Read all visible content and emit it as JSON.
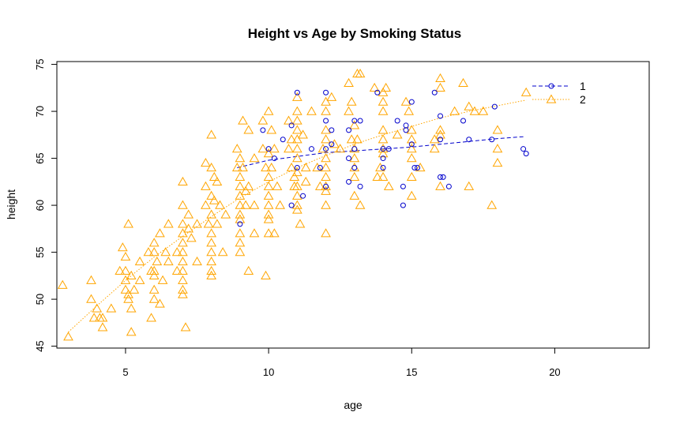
{
  "chart_data": {
    "type": "scatter",
    "title": "Height vs Age by Smoking Status",
    "xlabel": "age",
    "ylabel": "height",
    "xlim": [
      2.6,
      23.3
    ],
    "ylim": [
      44.8,
      75.3
    ],
    "xticks": [
      5,
      10,
      15,
      20
    ],
    "yticks": [
      45,
      50,
      55,
      60,
      65,
      70,
      75
    ],
    "legend_position": "top-right",
    "grid": false,
    "series": [
      {
        "name": "1",
        "color": "#0000cc",
        "marker": "circle",
        "line_style": "dashed",
        "points": [
          [
            9,
            58
          ],
          [
            9.8,
            68
          ],
          [
            10,
            66
          ],
          [
            10.2,
            65
          ],
          [
            10.5,
            67
          ],
          [
            10.8,
            68.5
          ],
          [
            10.8,
            60
          ],
          [
            11,
            64
          ],
          [
            11,
            72
          ],
          [
            11.2,
            61
          ],
          [
            11.5,
            66
          ],
          [
            11.8,
            64
          ],
          [
            12,
            72
          ],
          [
            12,
            69
          ],
          [
            12,
            66
          ],
          [
            12.2,
            68
          ],
          [
            12.2,
            66.5
          ],
          [
            12,
            62
          ],
          [
            12.8,
            68
          ],
          [
            12.8,
            65
          ],
          [
            13,
            69
          ],
          [
            13,
            66
          ],
          [
            13.2,
            69
          ],
          [
            13,
            64
          ],
          [
            12.8,
            62.5
          ],
          [
            13.2,
            62
          ],
          [
            13.8,
            72
          ],
          [
            14,
            66
          ],
          [
            14,
            65
          ],
          [
            14,
            64
          ],
          [
            14.2,
            66
          ],
          [
            14.5,
            69
          ],
          [
            14.8,
            68.5
          ],
          [
            14.8,
            68
          ],
          [
            14.7,
            62
          ],
          [
            14.7,
            60
          ],
          [
            15,
            66.5
          ],
          [
            15,
            71
          ],
          [
            15.1,
            64
          ],
          [
            15.2,
            64
          ],
          [
            15.8,
            72
          ],
          [
            16,
            69.5
          ],
          [
            16,
            67
          ],
          [
            16,
            63
          ],
          [
            16.1,
            63
          ],
          [
            16.3,
            62
          ],
          [
            16.8,
            69
          ],
          [
            17,
            67
          ],
          [
            17.8,
            67
          ],
          [
            17.9,
            70.5
          ],
          [
            18.9,
            66
          ],
          [
            19,
            65.5
          ]
        ],
        "smooth_line": [
          [
            8.9,
            64
          ],
          [
            10,
            64.8
          ],
          [
            11,
            65.2
          ],
          [
            12,
            65.6
          ],
          [
            13,
            65.8
          ],
          [
            14,
            66
          ],
          [
            15,
            66.2
          ],
          [
            16,
            66.5
          ],
          [
            17,
            66.8
          ],
          [
            18,
            67.1
          ],
          [
            18.9,
            67.3
          ]
        ]
      },
      {
        "name": "2",
        "color": "#ffa500",
        "marker": "triangle",
        "line_style": "dotted",
        "points": [
          [
            2.8,
            51.5
          ],
          [
            3,
            46
          ],
          [
            3.8,
            52
          ],
          [
            3.8,
            50
          ],
          [
            3.9,
            48
          ],
          [
            4,
            49
          ],
          [
            4.1,
            48
          ],
          [
            4.2,
            48
          ],
          [
            4.2,
            47
          ],
          [
            4.5,
            49
          ],
          [
            4.8,
            53
          ],
          [
            4.9,
            55.5
          ],
          [
            5,
            54.5
          ],
          [
            5,
            53
          ],
          [
            5,
            52
          ],
          [
            5,
            51
          ],
          [
            5.1,
            50.5
          ],
          [
            5.1,
            50
          ],
          [
            5.2,
            52.5
          ],
          [
            5.1,
            58
          ],
          [
            5.2,
            46.5
          ],
          [
            5.2,
            49
          ],
          [
            5.3,
            51
          ],
          [
            5.5,
            54
          ],
          [
            5.5,
            52
          ],
          [
            5.8,
            55
          ],
          [
            5.9,
            53
          ],
          [
            6,
            56
          ],
          [
            6,
            55
          ],
          [
            6,
            53
          ],
          [
            6,
            52.5
          ],
          [
            6,
            51
          ],
          [
            6,
            50
          ],
          [
            6.1,
            54
          ],
          [
            6.2,
            57
          ],
          [
            6.2,
            49.5
          ],
          [
            6.3,
            52
          ],
          [
            6.4,
            55
          ],
          [
            6.5,
            58
          ],
          [
            6.5,
            54
          ],
          [
            5.9,
            48
          ],
          [
            6.8,
            55
          ],
          [
            6.8,
            53
          ],
          [
            7,
            62.5
          ],
          [
            7,
            60
          ],
          [
            7,
            58
          ],
          [
            7,
            57
          ],
          [
            7,
            56
          ],
          [
            7,
            55
          ],
          [
            7,
            54
          ],
          [
            7,
            53
          ],
          [
            7,
            52
          ],
          [
            7,
            51
          ],
          [
            7,
            50.5
          ],
          [
            7.1,
            47
          ],
          [
            7.2,
            59
          ],
          [
            7.2,
            57.5
          ],
          [
            7.3,
            56.5
          ],
          [
            7.5,
            58
          ],
          [
            7.5,
            54
          ],
          [
            7.8,
            64.5
          ],
          [
            7.8,
            62
          ],
          [
            7.8,
            60
          ],
          [
            7.9,
            58
          ],
          [
            8,
            67.5
          ],
          [
            8,
            64
          ],
          [
            8,
            61
          ],
          [
            8,
            59
          ],
          [
            8,
            57
          ],
          [
            8,
            56
          ],
          [
            8,
            55
          ],
          [
            8,
            54
          ],
          [
            8,
            53
          ],
          [
            8,
            52.5
          ],
          [
            8.1,
            63
          ],
          [
            8.1,
            60.5
          ],
          [
            8.2,
            62.5
          ],
          [
            8.2,
            58
          ],
          [
            8.3,
            60
          ],
          [
            8.4,
            55
          ],
          [
            8.5,
            59
          ],
          [
            8.9,
            66
          ],
          [
            8.9,
            64
          ],
          [
            9,
            65
          ],
          [
            9,
            63
          ],
          [
            9,
            62
          ],
          [
            9,
            61
          ],
          [
            9,
            60
          ],
          [
            9,
            59
          ],
          [
            9,
            58.5
          ],
          [
            9,
            57
          ],
          [
            9,
            56
          ],
          [
            9,
            55
          ],
          [
            9.1,
            69
          ],
          [
            9.1,
            64
          ],
          [
            9.2,
            61.5
          ],
          [
            9.2,
            60
          ],
          [
            9.3,
            68
          ],
          [
            9.3,
            62
          ],
          [
            9.3,
            53
          ],
          [
            9.5,
            65
          ],
          [
            9.5,
            60
          ],
          [
            9.5,
            57
          ],
          [
            9.8,
            69
          ],
          [
            9.8,
            66
          ],
          [
            9.9,
            64
          ],
          [
            9.9,
            52.5
          ],
          [
            10,
            70
          ],
          [
            10,
            65.5
          ],
          [
            10,
            63
          ],
          [
            10,
            62
          ],
          [
            10,
            61
          ],
          [
            10,
            60
          ],
          [
            10,
            59
          ],
          [
            10,
            58.5
          ],
          [
            10,
            57
          ],
          [
            10.1,
            68
          ],
          [
            10.1,
            64
          ],
          [
            10.2,
            66
          ],
          [
            10.2,
            57
          ],
          [
            10.3,
            62
          ],
          [
            10.4,
            60
          ],
          [
            10.7,
            69
          ],
          [
            10.7,
            66
          ],
          [
            10.8,
            67
          ],
          [
            10.8,
            64
          ],
          [
            10.9,
            63
          ],
          [
            10.9,
            62
          ],
          [
            11,
            71.5
          ],
          [
            11,
            70
          ],
          [
            11,
            69
          ],
          [
            11,
            68
          ],
          [
            11,
            67
          ],
          [
            11,
            66
          ],
          [
            11,
            65
          ],
          [
            11,
            63.5
          ],
          [
            11,
            62
          ],
          [
            11,
            61
          ],
          [
            11,
            60
          ],
          [
            11,
            59.5
          ],
          [
            11.1,
            58
          ],
          [
            11.2,
            67.5
          ],
          [
            11.3,
            64
          ],
          [
            11.3,
            62.5
          ],
          [
            11.5,
            70
          ],
          [
            11.7,
            64
          ],
          [
            11.8,
            62
          ],
          [
            11.9,
            66
          ],
          [
            12,
            71
          ],
          [
            12,
            70
          ],
          [
            12,
            68
          ],
          [
            12,
            67
          ],
          [
            12,
            65
          ],
          [
            12,
            64
          ],
          [
            12,
            63
          ],
          [
            12,
            62
          ],
          [
            12,
            61.5
          ],
          [
            12,
            60
          ],
          [
            12,
            57
          ],
          [
            12.2,
            71.5
          ],
          [
            12.3,
            66.5
          ],
          [
            12.5,
            66
          ],
          [
            12.8,
            70
          ],
          [
            12.9,
            71
          ],
          [
            12.9,
            67
          ],
          [
            13,
            68.5
          ],
          [
            13,
            66
          ],
          [
            13,
            65
          ],
          [
            13,
            64
          ],
          [
            13,
            63
          ],
          [
            13,
            61
          ],
          [
            13.1,
            74
          ],
          [
            13.2,
            74
          ],
          [
            13.1,
            67
          ],
          [
            13.2,
            60
          ],
          [
            12.8,
            73
          ],
          [
            13.7,
            72.5
          ],
          [
            13.8,
            63
          ],
          [
            13.9,
            64
          ],
          [
            14,
            72
          ],
          [
            14,
            71
          ],
          [
            14,
            70
          ],
          [
            14,
            68
          ],
          [
            14,
            67
          ],
          [
            14,
            66
          ],
          [
            14,
            65.5
          ],
          [
            14,
            63
          ],
          [
            14.1,
            72.5
          ],
          [
            14.2,
            62
          ],
          [
            14.5,
            67.5
          ],
          [
            14.8,
            71
          ],
          [
            14.9,
            70
          ],
          [
            15,
            68
          ],
          [
            15,
            67
          ],
          [
            15,
            66
          ],
          [
            15,
            65
          ],
          [
            15,
            63
          ],
          [
            15,
            61
          ],
          [
            15.3,
            64
          ],
          [
            15.8,
            67
          ],
          [
            15.8,
            66
          ],
          [
            16,
            73.5
          ],
          [
            16,
            72.5
          ],
          [
            16,
            68
          ],
          [
            16,
            67.5
          ],
          [
            16,
            62
          ],
          [
            16.5,
            70
          ],
          [
            16.8,
            73
          ],
          [
            17,
            70.5
          ],
          [
            17,
            62
          ],
          [
            17.2,
            70
          ],
          [
            17.5,
            70
          ],
          [
            17.8,
            60
          ],
          [
            18,
            68
          ],
          [
            18,
            66
          ],
          [
            18,
            64.5
          ],
          [
            19,
            72
          ]
        ],
        "smooth_line": [
          [
            3,
            46.5
          ],
          [
            4,
            49.3
          ],
          [
            5,
            52
          ],
          [
            6,
            54.5
          ],
          [
            7,
            56.7
          ],
          [
            8,
            58.8
          ],
          [
            9,
            60.8
          ],
          [
            10,
            62.5
          ],
          [
            11,
            64
          ],
          [
            12,
            65.3
          ],
          [
            13,
            66.5
          ],
          [
            14,
            67.5
          ],
          [
            15,
            68.4
          ],
          [
            16,
            69.3
          ],
          [
            17,
            70
          ],
          [
            18,
            70.6
          ],
          [
            19,
            71.2
          ]
        ]
      }
    ]
  }
}
